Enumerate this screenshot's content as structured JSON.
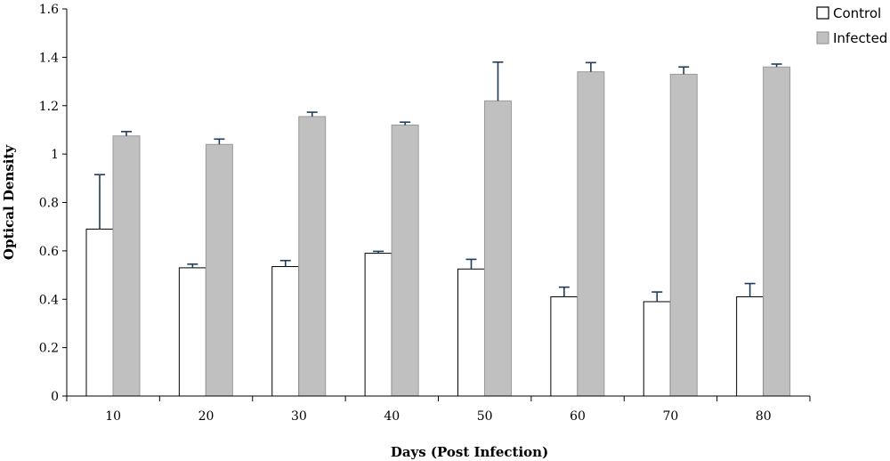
{
  "chart_data": {
    "type": "bar",
    "xlabel": "Days (Post Infection)",
    "ylabel": "Optical Density",
    "ylim": [
      0,
      1.6
    ],
    "yticks": [
      "0",
      "0.2",
      "0.4",
      "0.6",
      "0.8",
      "1",
      "1.2",
      "1.4",
      "1.6"
    ],
    "categories": [
      "10",
      "20",
      "30",
      "40",
      "50",
      "60",
      "70",
      "80"
    ],
    "legend_position": "top-right",
    "grid": false,
    "series": [
      {
        "name": "Control",
        "color": "#ffffff",
        "stroke": "#000000",
        "values": [
          0.69,
          0.53,
          0.535,
          0.59,
          0.525,
          0.41,
          0.39,
          0.41
        ],
        "errors": [
          0.225,
          0.015,
          0.025,
          0.008,
          0.04,
          0.04,
          0.04,
          0.055
        ]
      },
      {
        "name": "Infected",
        "color": "#c0c0c0",
        "stroke": "#9a9a9a",
        "values": [
          1.075,
          1.04,
          1.155,
          1.12,
          1.22,
          1.34,
          1.33,
          1.36
        ],
        "errors": [
          0.018,
          0.022,
          0.018,
          0.012,
          0.16,
          0.038,
          0.03,
          0.012
        ]
      }
    ],
    "error_bar_color": "#1f3b5a"
  }
}
